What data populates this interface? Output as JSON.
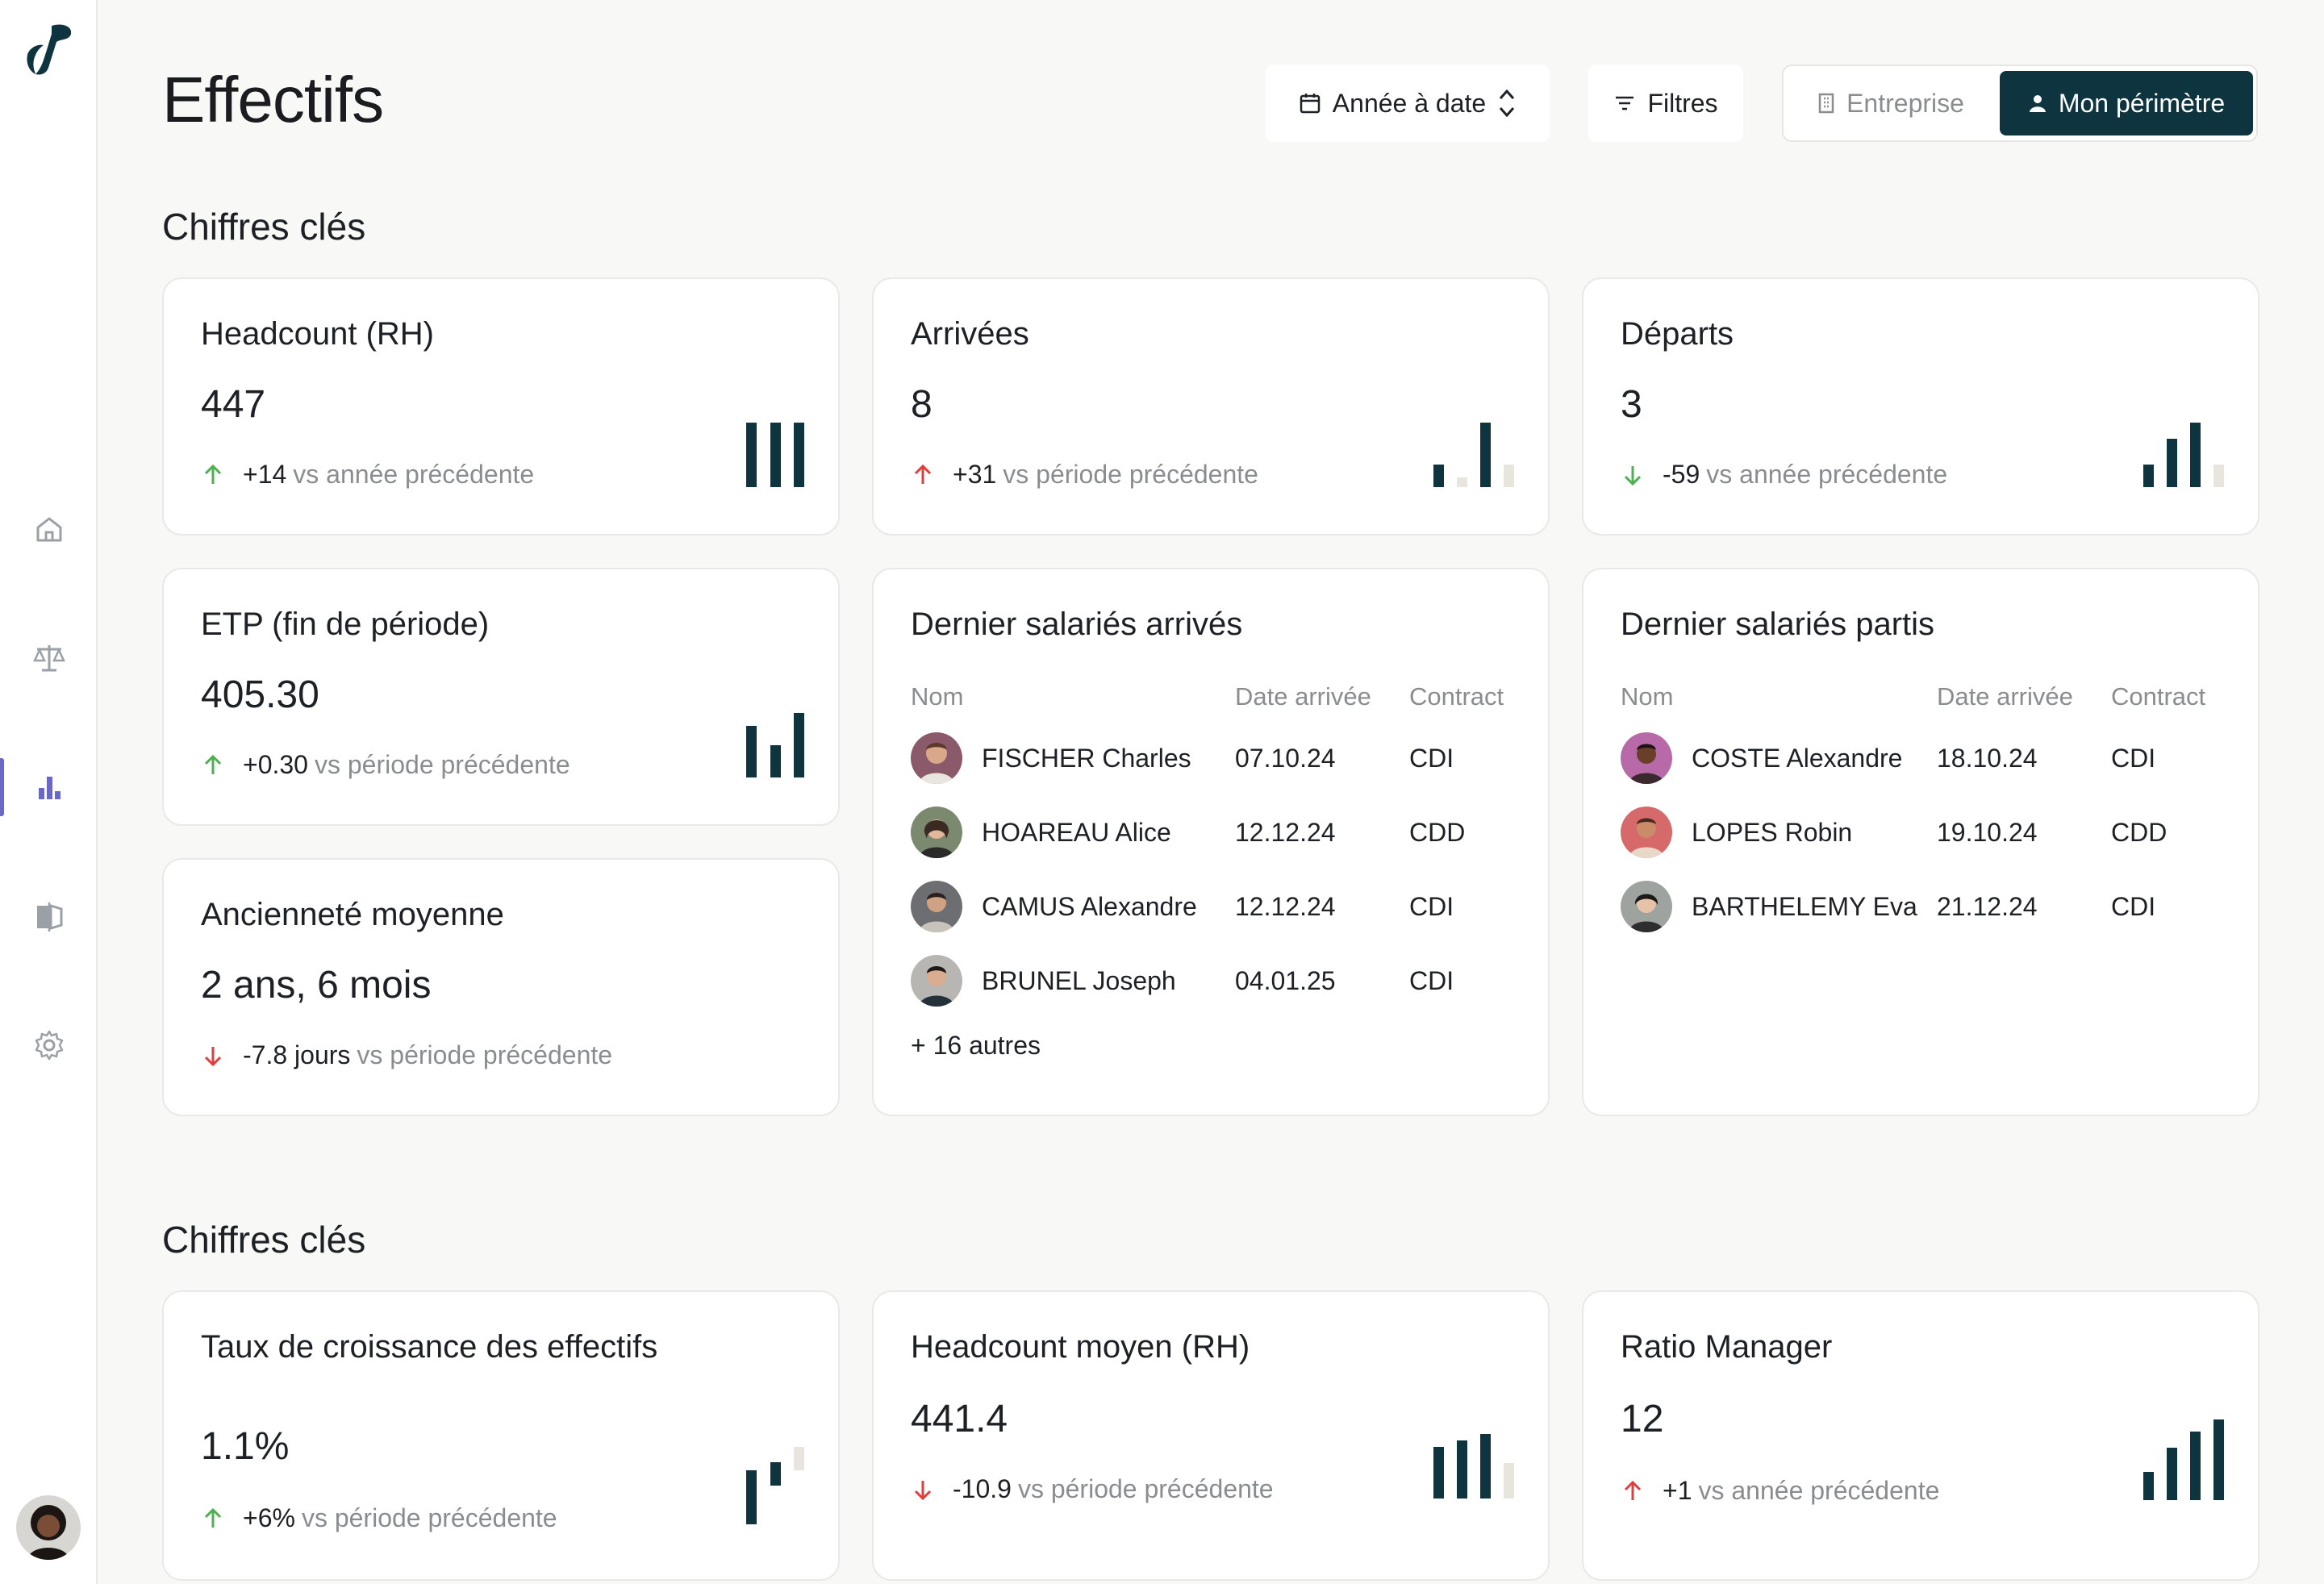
{
  "page": {
    "title": "Effectifs"
  },
  "header": {
    "period_label": "Année à date",
    "filters_label": "Filtres",
    "scope": {
      "enterprise_label": "Entreprise",
      "mine_label": "Mon périmètre"
    }
  },
  "sidebar": {
    "items": [
      {
        "name": "home",
        "icon": "home-icon"
      },
      {
        "name": "balance",
        "icon": "scale-icon"
      },
      {
        "name": "analytics",
        "icon": "bar-chart-icon",
        "active": true
      },
      {
        "name": "compare",
        "icon": "compare-icon"
      },
      {
        "name": "settings",
        "icon": "gear-icon"
      }
    ]
  },
  "sections": [
    {
      "title": "Chiffres clés"
    },
    {
      "title": "Chiffres clés"
    }
  ],
  "cards": {
    "headcount": {
      "title": "Headcount (RH)",
      "value": "447",
      "delta": "+14",
      "delta_label": "vs année précédente",
      "trend": "up-good",
      "bars": [
        1,
        1,
        1
      ],
      "bar_colors": [
        "dark",
        "dark",
        "dark"
      ]
    },
    "arrivals": {
      "title": "Arrivées",
      "value": "8",
      "delta": "+31",
      "delta_label": "vs période précédente",
      "trend": "up-bad",
      "bars": [
        0.35,
        0.15,
        1,
        0.35
      ],
      "bar_colors": [
        "dark",
        "light",
        "dark",
        "light"
      ]
    },
    "departures": {
      "title": "Départs",
      "value": "3",
      "delta": "-59",
      "delta_label": "vs année précédente",
      "trend": "down-good",
      "bars": [
        0.35,
        0.75,
        1,
        0.35
      ],
      "bar_colors": [
        "dark",
        "dark",
        "dark",
        "light"
      ]
    },
    "etp": {
      "title": "ETP (fin de période)",
      "value": "405.30",
      "delta": "+0.30",
      "delta_label": "vs période précédente",
      "trend": "up-good",
      "bars": [
        0.8,
        0.5,
        1
      ],
      "bar_colors": [
        "dark",
        "dark",
        "dark"
      ]
    },
    "seniority": {
      "title": "Ancienneté moyenne",
      "value": "2 ans, 6 mois",
      "delta": "-7.8 jours",
      "delta_label": "vs période précédente",
      "trend": "down-bad"
    },
    "growth": {
      "title": "Taux de croissance des effectifs",
      "value": "1.1%",
      "delta": "+6%",
      "delta_label": "vs période précédente",
      "trend": "up-good",
      "bars": [
        0.85,
        0.5,
        0.25
      ],
      "bar_colors": [
        "dark",
        "dark",
        "light"
      ]
    },
    "avg_headcount": {
      "title": "Headcount moyen (RH)",
      "value": "441.4",
      "delta": "-10.9",
      "delta_label": "vs période précédente",
      "trend": "down-bad",
      "bars": [
        0.8,
        0.9,
        1,
        0.55
      ],
      "bar_colors": [
        "dark",
        "dark",
        "dark",
        "light"
      ]
    },
    "manager_ratio": {
      "title": "Ratio Manager",
      "value": "12",
      "delta": "+1",
      "delta_label": "vs année précédente",
      "trend": "up-bad",
      "bars": [
        0.35,
        0.65,
        0.85,
        1
      ],
      "bar_colors": [
        "dark",
        "dark",
        "dark",
        "dark"
      ]
    }
  },
  "arrived": {
    "title": "Dernier salariés arrivés",
    "columns": [
      "Nom",
      "Date arrivée",
      "Contract"
    ],
    "rows": [
      {
        "name": "FISCHER Charles",
        "date": "07.10.24",
        "contract": "CDI"
      },
      {
        "name": "HOAREAU Alice",
        "date": "12.12.24",
        "contract": "CDD"
      },
      {
        "name": "CAMUS Alexandre",
        "date": "12.12.24",
        "contract": "CDI"
      },
      {
        "name": "BRUNEL Joseph",
        "date": "04.01.25",
        "contract": "CDI"
      }
    ],
    "more": "+ 16 autres"
  },
  "departed": {
    "title": "Dernier salariés partis",
    "columns": [
      "Nom",
      "Date arrivée",
      "Contract"
    ],
    "rows": [
      {
        "name": "COSTE Alexandre",
        "date": "18.10.24",
        "contract": "CDI"
      },
      {
        "name": "LOPES Robin",
        "date": "19.10.24",
        "contract": "CDD"
      },
      {
        "name": "BARTHELEMY Eva",
        "date": "21.12.24",
        "contract": "CDI"
      }
    ]
  },
  "colors": {
    "accent": "#0e3440",
    "positive": "#4caf50",
    "negative": "#e23d3d",
    "muted": "#8a8d8f",
    "bar_light": "#e8e5de",
    "nav_active": "#6a68c6"
  }
}
